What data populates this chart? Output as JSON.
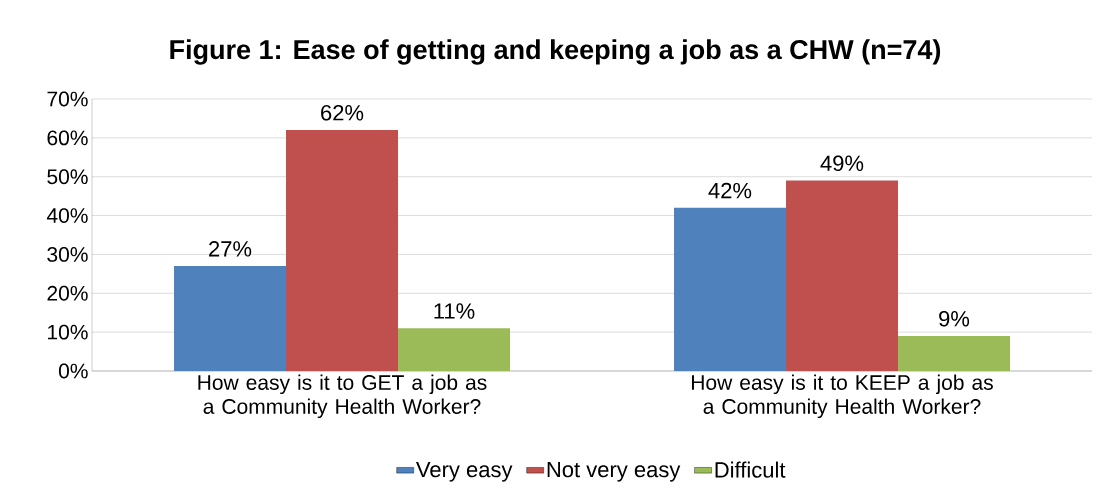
{
  "chart_data": {
    "type": "bar",
    "title": "Figure 1: Ease of getting and keeping a job as a CHW (n=74)",
    "categories": [
      "How easy is it to GET a job as a Community Health Worker?",
      "How easy is it to KEEP a job as a Community Health Worker?"
    ],
    "series": [
      {
        "name": "Very easy",
        "color": "#4f81bd",
        "values": [
          27,
          42
        ],
        "value_labels": [
          "27%",
          "42%"
        ]
      },
      {
        "name": "Not very easy",
        "color": "#c0504d",
        "values": [
          62,
          49
        ],
        "value_labels": [
          "62%",
          "49%"
        ]
      },
      {
        "name": "Difficult",
        "color": "#9bbb59",
        "values": [
          11,
          9
        ],
        "value_labels": [
          "11%",
          "9%"
        ]
      }
    ],
    "ylim": [
      0,
      70
    ],
    "yticks": [
      {
        "value": 0,
        "label": "0%"
      },
      {
        "value": 10,
        "label": "10%"
      },
      {
        "value": 20,
        "label": "20%"
      },
      {
        "value": 30,
        "label": "30%"
      },
      {
        "value": 40,
        "label": "40%"
      },
      {
        "value": 50,
        "label": "50%"
      },
      {
        "value": 60,
        "label": "60%"
      },
      {
        "value": 70,
        "label": "70%"
      }
    ],
    "grid": "y",
    "legend": "bottom"
  }
}
